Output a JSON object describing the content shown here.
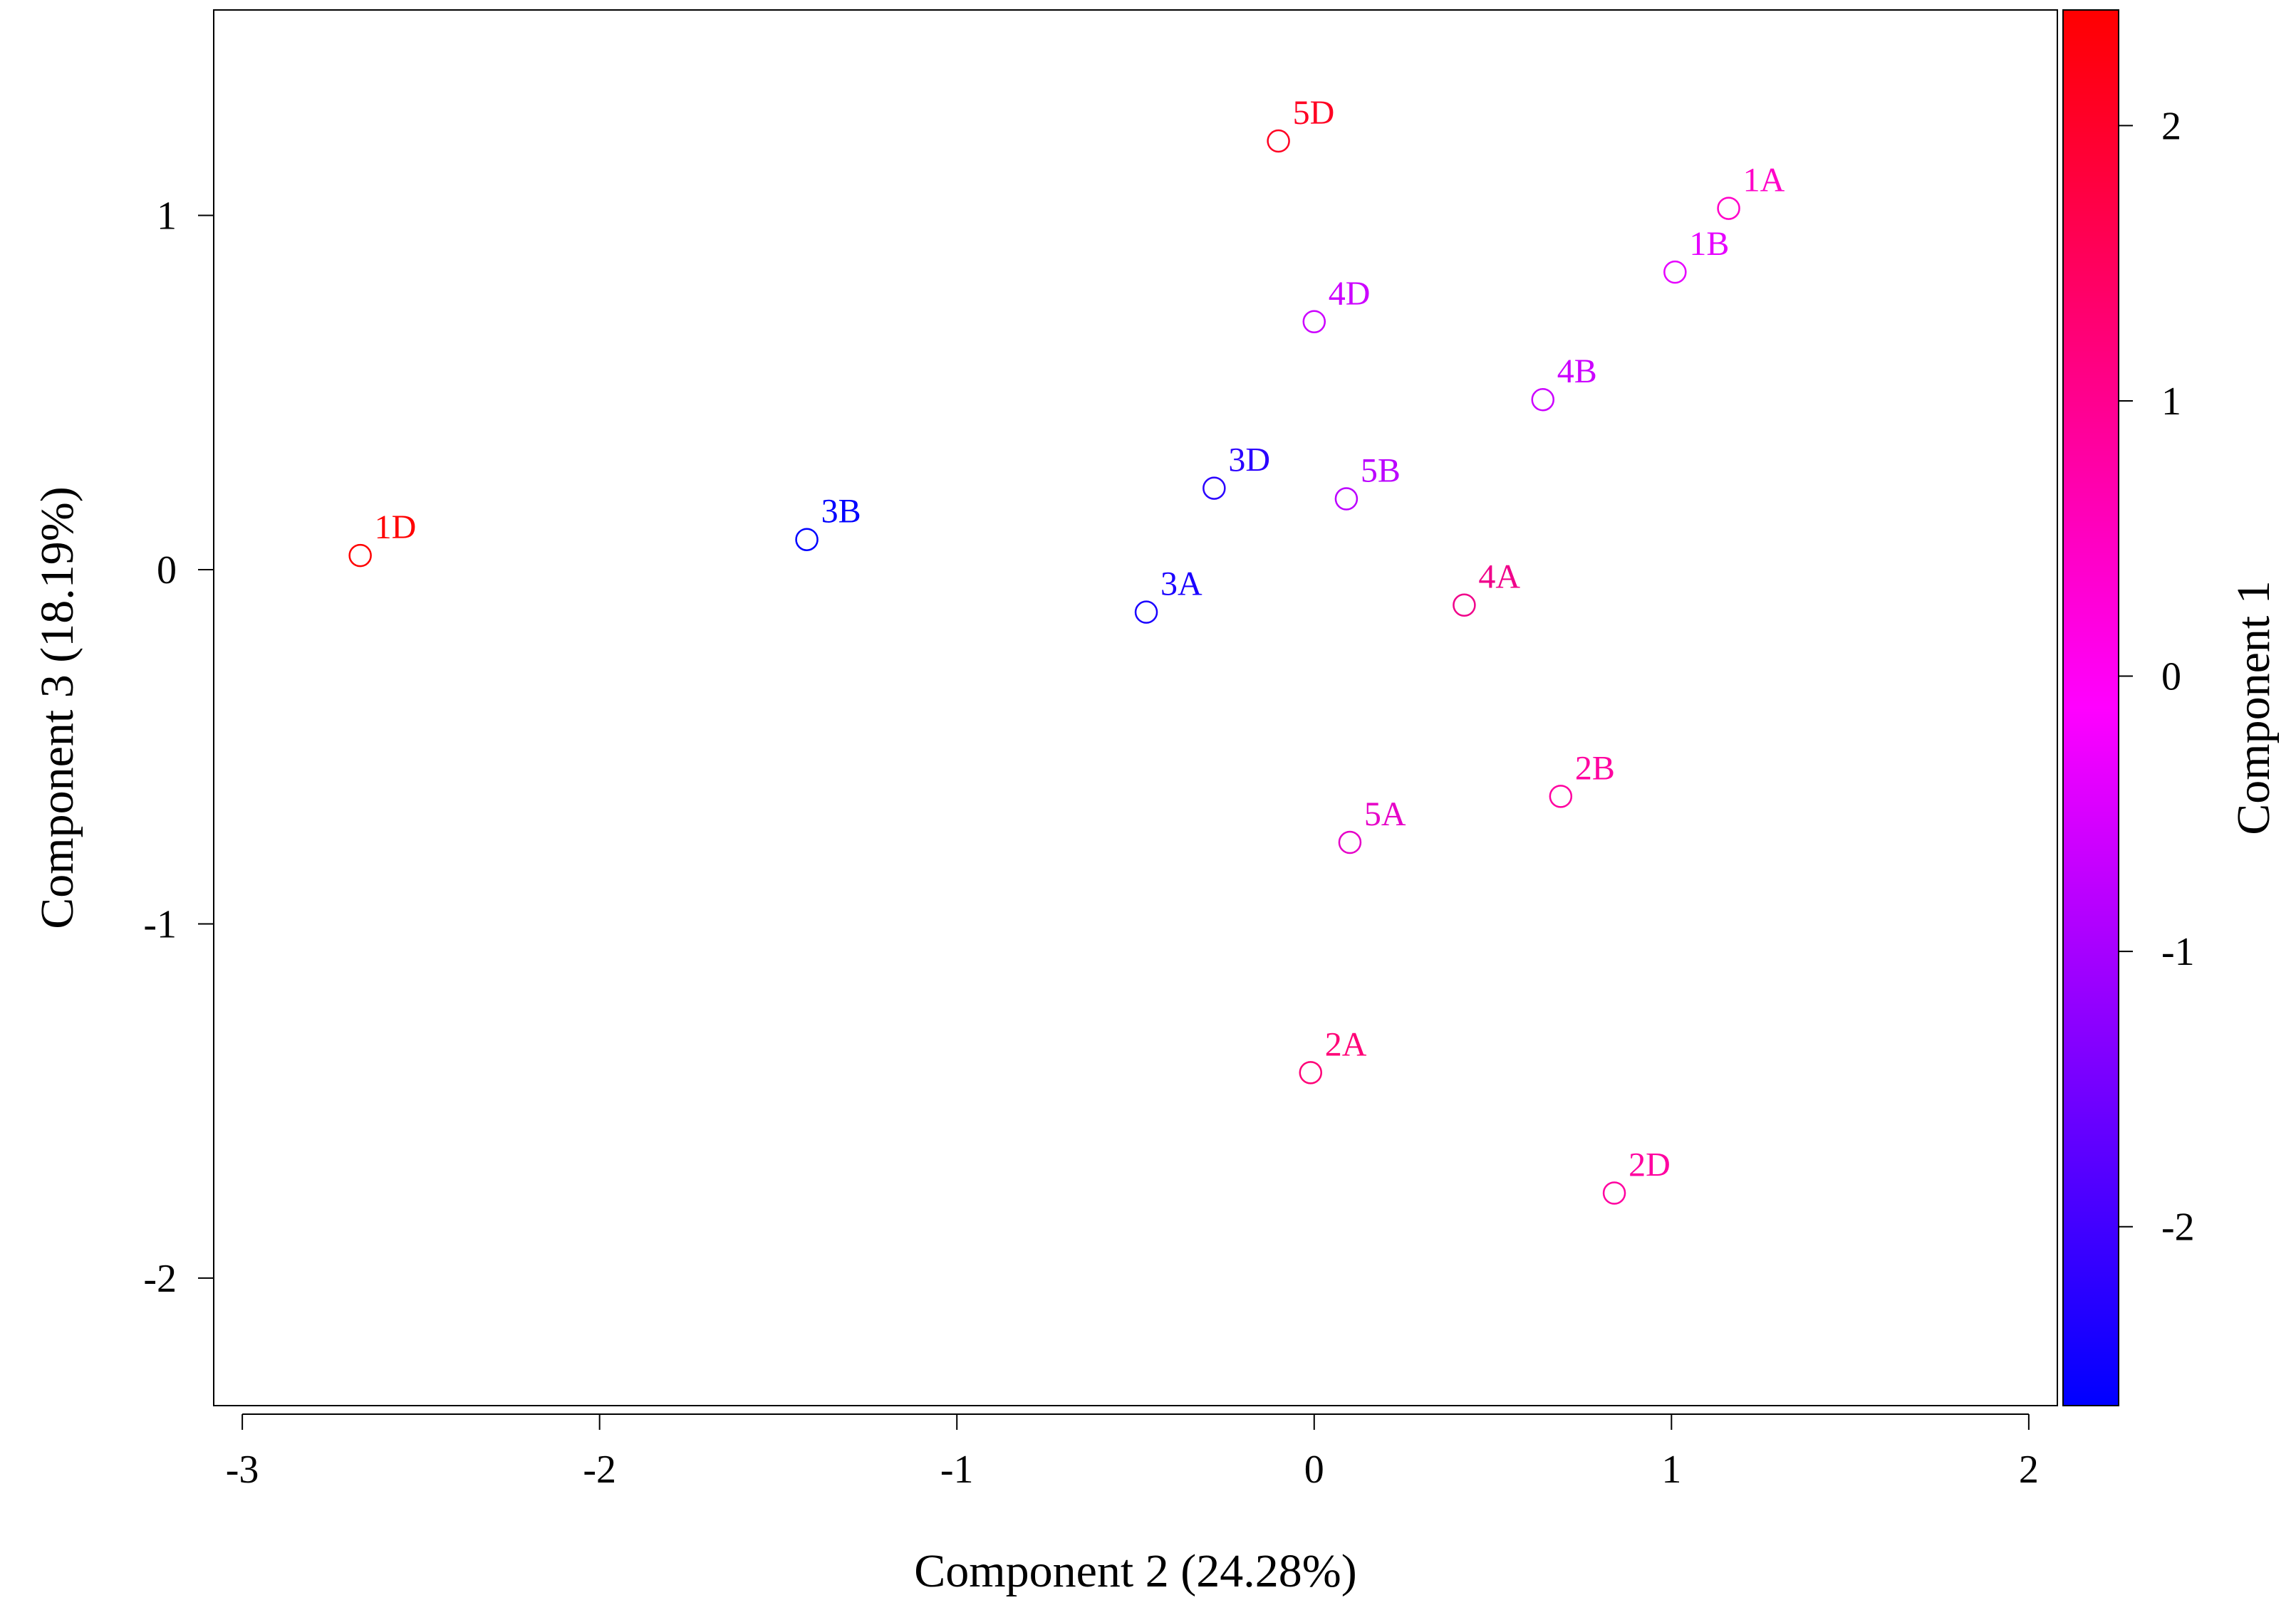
{
  "chart_data": {
    "type": "scatter",
    "xlabel": "Component 2 (24.28%)",
    "ylabel": "Component 3 (18.19%)",
    "xlim": [
      -3.08,
      2.08
    ],
    "ylim": [
      -2.36,
      1.58
    ],
    "xticks": [
      -3,
      -2,
      -1,
      0,
      1,
      2
    ],
    "xtick_labels": [
      "-3",
      "-2",
      "-1",
      "0",
      "1",
      "2"
    ],
    "yticks": [
      -2,
      -1,
      0,
      1
    ],
    "ytick_labels": [
      "-2",
      "-1",
      "0",
      "1"
    ],
    "grid": false,
    "colorbar": {
      "label": "Component 1",
      "range": [
        -2.65,
        2.42
      ],
      "ticks": [
        -2,
        -1,
        0,
        1,
        2
      ],
      "tick_labels": [
        "-2",
        "-1",
        "0",
        "1",
        "2"
      ],
      "colors": [
        "#0000ff",
        "#ff00ff",
        "#ff0000"
      ]
    },
    "points": [
      {
        "label": "1D",
        "x": -2.67,
        "y": 0.04,
        "color": "#ff0000"
      },
      {
        "label": "3B",
        "x": -1.42,
        "y": 0.085,
        "color": "#0000ff"
      },
      {
        "label": "3A",
        "x": -0.47,
        "y": -0.12,
        "color": "#1a00ff"
      },
      {
        "label": "3D",
        "x": -0.28,
        "y": 0.23,
        "color": "#2a00ff"
      },
      {
        "label": "5D",
        "x": -0.1,
        "y": 1.21,
        "color": "#ff0022"
      },
      {
        "label": "4D",
        "x": 0.0,
        "y": 0.7,
        "color": "#cc00ff"
      },
      {
        "label": "5B",
        "x": 0.09,
        "y": 0.2,
        "color": "#bb00ff"
      },
      {
        "label": "5A",
        "x": 0.1,
        "y": -0.77,
        "color": "#e600c8"
      },
      {
        "label": "2A",
        "x": -0.01,
        "y": -1.42,
        "color": "#ff0077"
      },
      {
        "label": "4A",
        "x": 0.42,
        "y": -0.1,
        "color": "#f0008a"
      },
      {
        "label": "4B",
        "x": 0.64,
        "y": 0.48,
        "color": "#cc00ff"
      },
      {
        "label": "2B",
        "x": 0.69,
        "y": -0.64,
        "color": "#ff00a0"
      },
      {
        "label": "2D",
        "x": 0.84,
        "y": -1.76,
        "color": "#ff00a0"
      },
      {
        "label": "1B",
        "x": 1.01,
        "y": 0.84,
        "color": "#e600ff"
      },
      {
        "label": "1A",
        "x": 1.16,
        "y": 1.02,
        "color": "#ff00c8"
      }
    ]
  }
}
